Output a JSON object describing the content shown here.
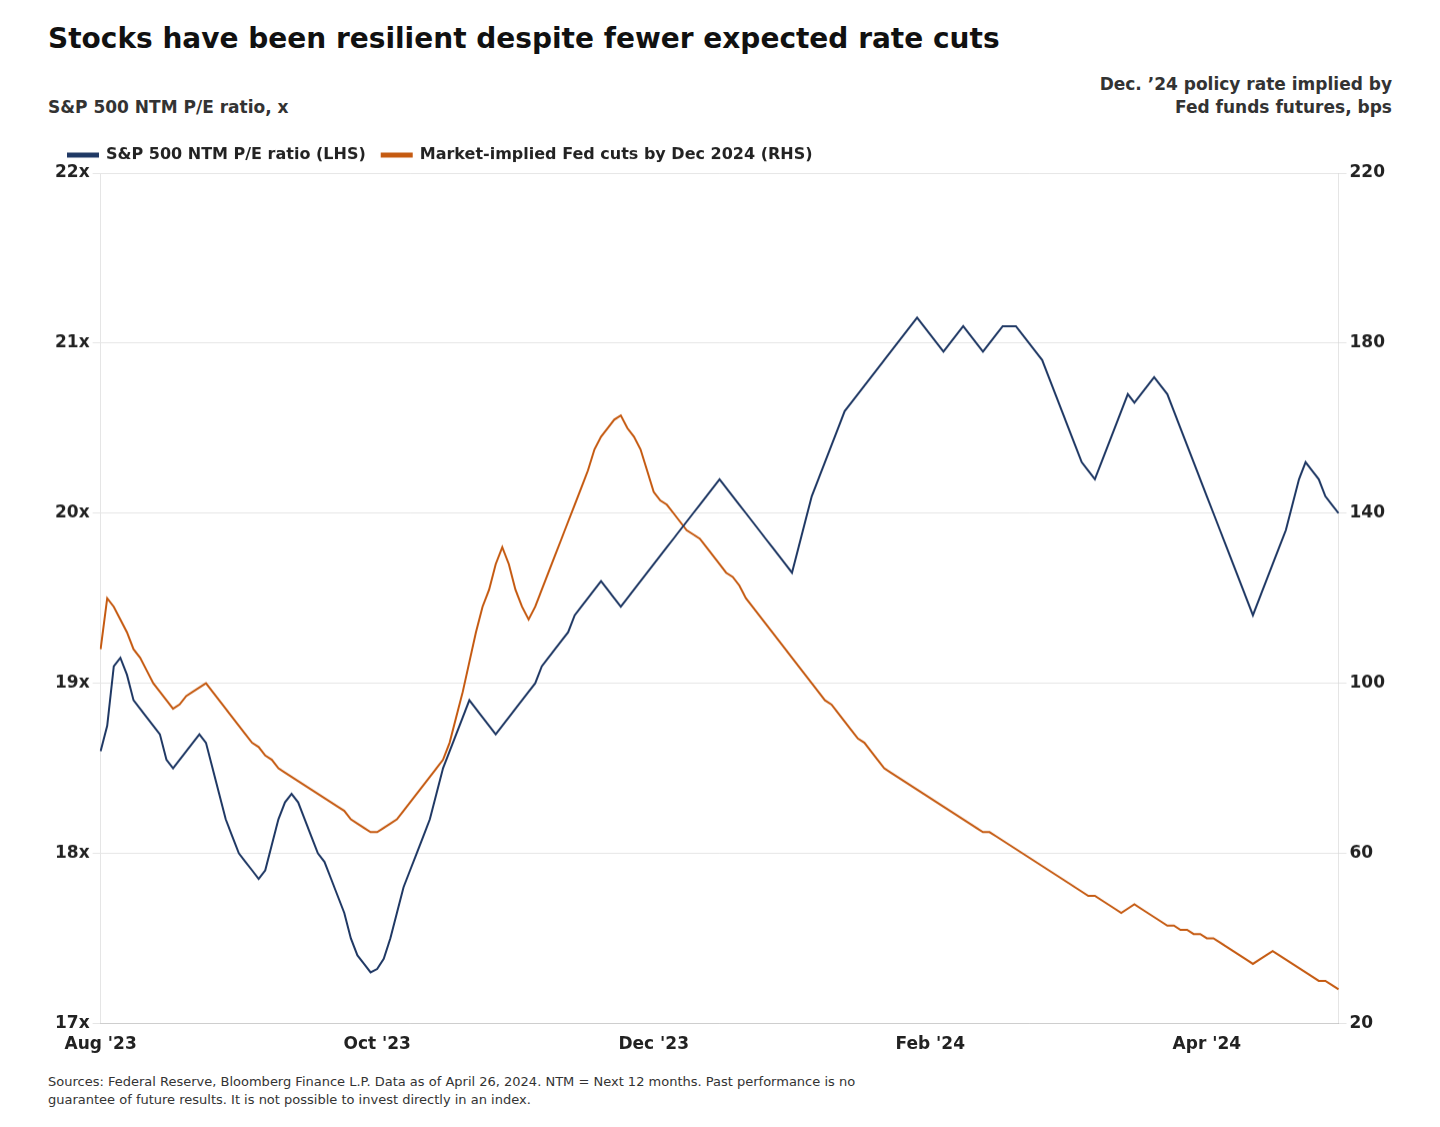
{
  "chart_data": {
    "type": "line",
    "title": "Stocks have been resilient despite fewer expected rate cuts",
    "y_label": "S&P 500 NTM P/E ratio, x",
    "y2_label": "Dec. ’24 policy rate implied by\nFed funds futures, bps",
    "source": "Sources: Federal Reserve, Bloomberg Finance L.P. Data as of April 26, 2024. NTM = Next 12 months. Past performance is no\nguarantee of future results. It is not possible to invest directly in an index.",
    "categories": [
      "Aug '23",
      null,
      null,
      null,
      null,
      null,
      null,
      null,
      null,
      null,
      null,
      null,
      null,
      null,
      null,
      null,
      null,
      null,
      null,
      null,
      null,
      null,
      null,
      null,
      null,
      null,
      null,
      null,
      null,
      null,
      null,
      null,
      null,
      null,
      null,
      null,
      null,
      null,
      null,
      null,
      null,
      null,
      "Oct '23",
      null,
      null,
      null,
      null,
      null,
      null,
      null,
      null,
      null,
      null,
      null,
      null,
      null,
      null,
      null,
      null,
      null,
      null,
      null,
      null,
      null,
      null,
      null,
      null,
      null,
      null,
      null,
      null,
      null,
      null,
      null,
      null,
      null,
      null,
      null,
      null,
      null,
      null,
      null,
      null,
      null,
      "Dec '23",
      null,
      null,
      null,
      null,
      null,
      null,
      null,
      null,
      null,
      null,
      null,
      null,
      null,
      null,
      null,
      null,
      null,
      null,
      null,
      null,
      null,
      null,
      null,
      null,
      null,
      null,
      null,
      null,
      null,
      null,
      null,
      null,
      null,
      null,
      null,
      null,
      null,
      null,
      null,
      null,
      null,
      "Feb '24",
      null,
      null,
      null,
      null,
      null,
      null,
      null,
      null,
      null,
      null,
      null,
      null,
      null,
      null,
      null,
      null,
      null,
      null,
      null,
      null,
      null,
      null,
      null,
      null,
      null,
      null,
      null,
      null,
      null,
      null,
      null,
      null,
      null,
      null,
      null,
      null,
      null,
      null,
      null,
      null,
      null,
      "Apr '24",
      null,
      null,
      null,
      null,
      null,
      null,
      null,
      null,
      null,
      null,
      null,
      null,
      null,
      null,
      null,
      null,
      null,
      null,
      null,
      null
    ],
    "series": [
      {
        "name": "S&P 500 NTM P/E ratio (LHS)",
        "color": "#1f3864",
        "values": [
          18.6,
          18.75,
          19.1,
          19.15,
          19.05,
          18.9,
          18.85,
          18.8,
          18.75,
          18.7,
          18.55,
          18.5,
          18.55,
          18.6,
          18.65,
          18.7,
          18.65,
          18.5,
          18.35,
          18.2,
          18.1,
          18.0,
          17.95,
          17.9,
          17.85,
          17.9,
          18.05,
          18.2,
          18.3,
          18.35,
          18.3,
          18.2,
          18.1,
          18.0,
          17.95,
          17.85,
          17.75,
          17.65,
          17.5,
          17.4,
          17.35,
          17.3,
          17.32,
          17.38,
          17.5,
          17.65,
          17.8,
          17.9,
          18.0,
          18.1,
          18.2,
          18.35,
          18.5,
          18.6,
          18.7,
          18.8,
          18.9,
          18.85,
          18.8,
          18.75,
          18.7,
          18.75,
          18.8,
          18.85,
          18.9,
          18.95,
          19.0,
          19.1,
          19.15,
          19.2,
          19.25,
          19.3,
          19.4,
          19.45,
          19.5,
          19.55,
          19.6,
          19.55,
          19.5,
          19.45,
          19.5,
          19.55,
          19.6,
          19.65,
          19.7,
          19.75,
          19.8,
          19.85,
          19.9,
          19.95,
          20.0,
          20.05,
          20.1,
          20.15,
          20.2,
          20.15,
          20.1,
          20.05,
          20.0,
          19.95,
          19.9,
          19.85,
          19.8,
          19.75,
          19.7,
          19.65,
          19.8,
          19.95,
          20.1,
          20.2,
          20.3,
          20.4,
          20.5,
          20.6,
          20.65,
          20.7,
          20.75,
          20.8,
          20.85,
          20.9,
          20.95,
          21.0,
          21.05,
          21.1,
          21.15,
          21.1,
          21.05,
          21.0,
          20.95,
          21.0,
          21.05,
          21.1,
          21.05,
          21.0,
          20.95,
          21.0,
          21.05,
          21.1,
          21.1,
          21.1,
          21.05,
          21.0,
          20.95,
          20.9,
          20.8,
          20.7,
          20.6,
          20.5,
          20.4,
          20.3,
          20.25,
          20.2,
          20.3,
          20.4,
          20.5,
          20.6,
          20.7,
          20.65,
          20.7,
          20.75,
          20.8,
          20.75,
          20.7,
          20.6,
          20.5,
          20.4,
          20.3,
          20.2,
          20.1,
          20.0,
          19.9,
          19.8,
          19.7,
          19.6,
          19.5,
          19.4,
          19.5,
          19.6,
          19.7,
          19.8,
          19.9,
          20.05,
          20.2,
          20.3,
          20.25,
          20.2,
          20.1,
          20.05,
          20.0
        ]
      },
      {
        "name": "Market-implied Fed cuts by Dec 2024 (RHS)",
        "color": "#c55a11",
        "axis": "y2",
        "values": [
          108,
          120,
          118,
          115,
          112,
          108,
          106,
          103,
          100,
          98,
          96,
          94,
          95,
          97,
          98,
          99,
          100,
          98,
          96,
          94,
          92,
          90,
          88,
          86,
          85,
          83,
          82,
          80,
          79,
          78,
          77,
          76,
          75,
          74,
          73,
          72,
          71,
          70,
          68,
          67,
          66,
          65,
          65,
          66,
          67,
          68,
          70,
          72,
          74,
          76,
          78,
          80,
          82,
          86,
          92,
          98,
          105,
          112,
          118,
          122,
          128,
          132,
          128,
          122,
          118,
          115,
          118,
          122,
          126,
          130,
          134,
          138,
          142,
          146,
          150,
          155,
          158,
          160,
          162,
          163,
          160,
          158,
          155,
          150,
          145,
          143,
          142,
          140,
          138,
          136,
          135,
          134,
          132,
          130,
          128,
          126,
          125,
          123,
          120,
          118,
          116,
          114,
          112,
          110,
          108,
          106,
          104,
          102,
          100,
          98,
          96,
          95,
          93,
          91,
          89,
          87,
          86,
          84,
          82,
          80,
          79,
          78,
          77,
          76,
          75,
          74,
          73,
          72,
          71,
          70,
          69,
          68,
          67,
          66,
          65,
          65,
          64,
          63,
          62,
          61,
          60,
          59,
          58,
          57,
          56,
          55,
          54,
          53,
          52,
          51,
          50,
          50,
          49,
          48,
          47,
          46,
          47,
          48,
          47,
          46,
          45,
          44,
          43,
          43,
          42,
          42,
          41,
          41,
          40,
          40,
          39,
          38,
          37,
          36,
          35,
          34,
          35,
          36,
          37,
          36,
          35,
          34,
          33,
          32,
          31,
          30,
          30,
          29,
          28
        ]
      }
    ],
    "ylim": [
      17,
      22
    ],
    "yticks": [
      {
        "value": 17,
        "label": "17x"
      },
      {
        "value": 18,
        "label": "18x"
      },
      {
        "value": 19,
        "label": "19x"
      },
      {
        "value": 20,
        "label": "20x"
      },
      {
        "value": 21,
        "label": "21x"
      },
      {
        "value": 22,
        "label": "22x"
      }
    ],
    "y2lim": [
      20,
      220
    ],
    "y2ticks": [
      20,
      60,
      100,
      140,
      180,
      220
    ],
    "grid": true,
    "legend": "upper left"
  }
}
